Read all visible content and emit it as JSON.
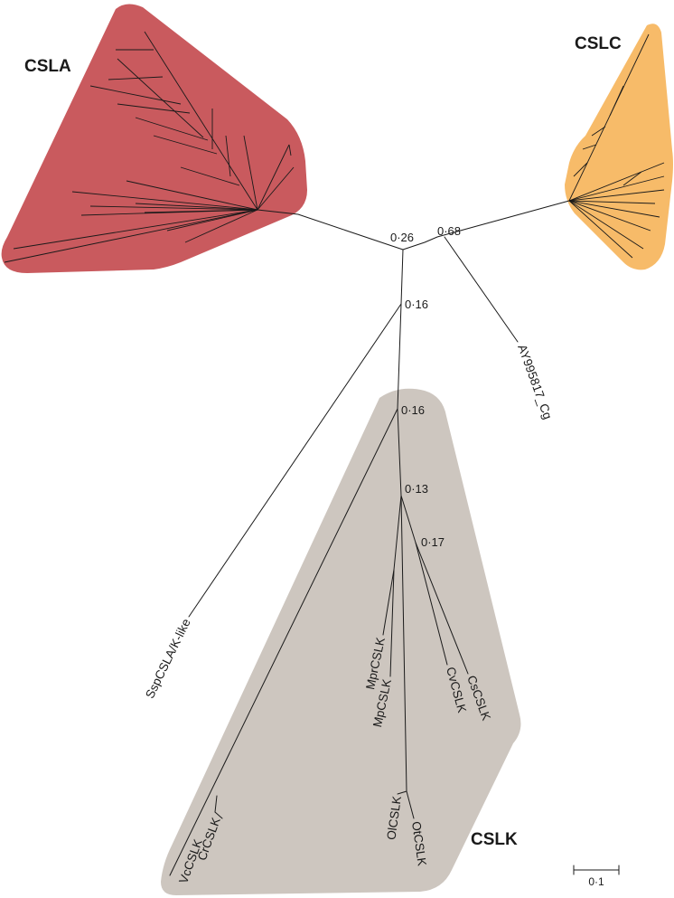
{
  "clades": {
    "csla": {
      "label": "CSLA",
      "color": "#c95a5e"
    },
    "cslc": {
      "label": "CSLC",
      "color": "#f7bb69"
    },
    "cslk": {
      "label": "CSLK",
      "color": "#cdc6bf"
    }
  },
  "supports": {
    "s026": "0·26",
    "s068": "0·68",
    "s016a": "0·16",
    "s016b": "0·16",
    "s013": "0·13",
    "s017": "0·17"
  },
  "taxa": {
    "ay995817": "AY995817_Cg",
    "sspcsla": "SspCSLA/K-like",
    "mprcslk": "MprCSLK",
    "mpcslk": "MpCSLK",
    "cvcslk": "CvCSLK",
    "cscslk": "CsCSLK",
    "olcslk": "OlCSLK",
    "otcslk": "OtCSLK",
    "vccslk": "VcCSLK",
    "crcslk": "CrCSLK"
  },
  "scale": {
    "label": "0·1"
  }
}
